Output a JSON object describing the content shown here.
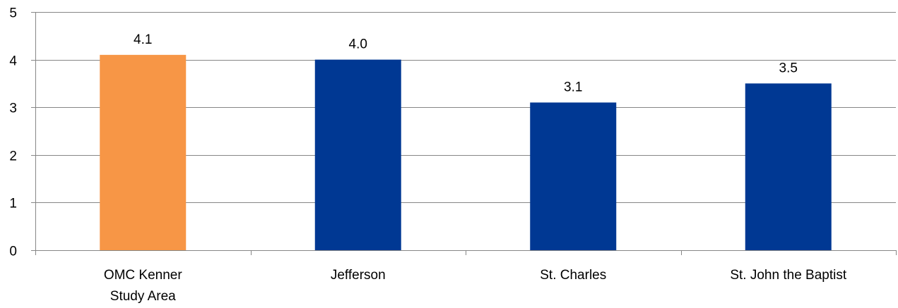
{
  "chart_data": {
    "type": "bar",
    "categories": [
      [
        "OMC Kenner",
        "Study Area"
      ],
      [
        "Jefferson"
      ],
      [
        "St. Charles"
      ],
      [
        "St. John the Baptist"
      ]
    ],
    "values": [
      4.1,
      4.0,
      3.1,
      3.5
    ],
    "data_labels": [
      "4.1",
      "4.0",
      "3.1",
      "3.5"
    ],
    "bar_colors": [
      "#F79646",
      "#003893",
      "#003893",
      "#003893"
    ],
    "y_ticks": [
      "0",
      "1",
      "2",
      "3",
      "4",
      "5"
    ],
    "ylim": [
      0,
      5
    ],
    "grid": true,
    "legend": "none",
    "title": "",
    "xlabel": "",
    "ylabel": ""
  }
}
